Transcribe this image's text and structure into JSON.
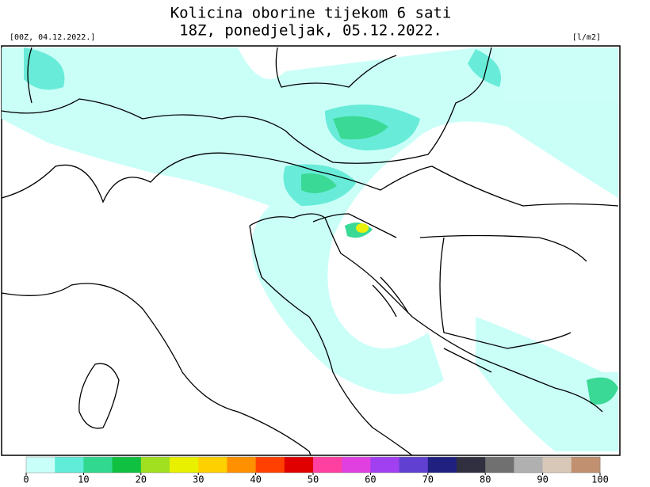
{
  "header": {
    "title_line1": "Kolicina oborine tijekom 6 sati",
    "title_line2": "18Z, ponedjeljak, 05.12.2022.",
    "run_label": "[00Z, 04.12.2022.]",
    "unit_label": "[l/m2]"
  },
  "colorbar": {
    "lim": [
      0,
      100
    ],
    "ticks": [
      0,
      10,
      20,
      30,
      40,
      50,
      60,
      70,
      80,
      90,
      100
    ],
    "colors": [
      "#c8fff8",
      "#60ecd8",
      "#30d890",
      "#10c040",
      "#a0e020",
      "#e8f000",
      "#ffd000",
      "#ff9000",
      "#ff4000",
      "#e00000",
      "#ff40a0",
      "#e040e0",
      "#a040f0",
      "#6040d0",
      "#202080",
      "#303040",
      "#707070",
      "#b0b0b0",
      "#d8c8b8",
      "#c09070"
    ]
  }
}
